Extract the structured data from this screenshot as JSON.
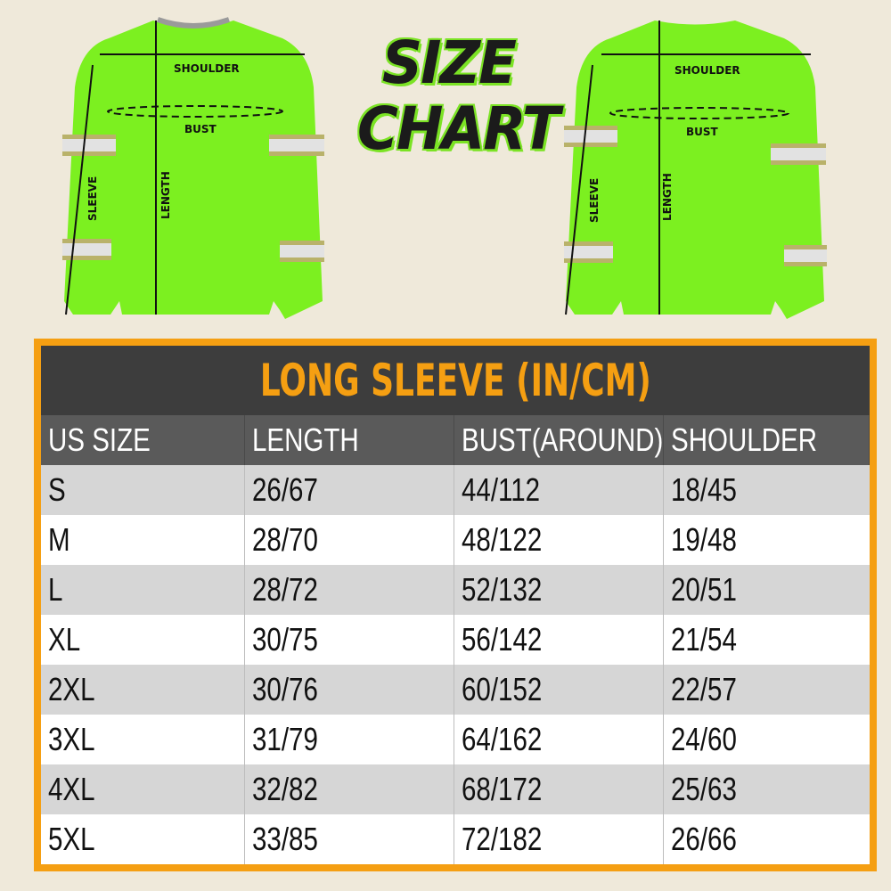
{
  "title_line1": "SIZE",
  "title_line2": "CHART",
  "diagram_labels": {
    "shoulder": "SHOULDER",
    "bust": "BUST",
    "sleeve": "SLEEVE",
    "length": "LENGTH"
  },
  "colors": {
    "sweater": "#7cf020",
    "accent": "#f59f12",
    "title_bar": "#3d3d3d",
    "header_bar": "#5a5a5a"
  },
  "table": {
    "title": "LONG SLEEVE (IN/CM)",
    "headers": [
      "US SIZE",
      "LENGTH",
      "BUST(AROUND)",
      "SHOULDER"
    ],
    "rows": [
      [
        "S",
        "26/67",
        "44/112",
        "18/45"
      ],
      [
        "M",
        "28/70",
        "48/122",
        "19/48"
      ],
      [
        "L",
        "28/72",
        "52/132",
        "20/51"
      ],
      [
        "XL",
        "30/75",
        "56/142",
        "21/54"
      ],
      [
        "2XL",
        "30/76",
        "60/152",
        "22/57"
      ],
      [
        "3XL",
        "31/79",
        "64/162",
        "24/60"
      ],
      [
        "4XL",
        "32/82",
        "68/172",
        "25/63"
      ],
      [
        "5XL",
        "33/85",
        "72/182",
        "26/66"
      ]
    ]
  }
}
